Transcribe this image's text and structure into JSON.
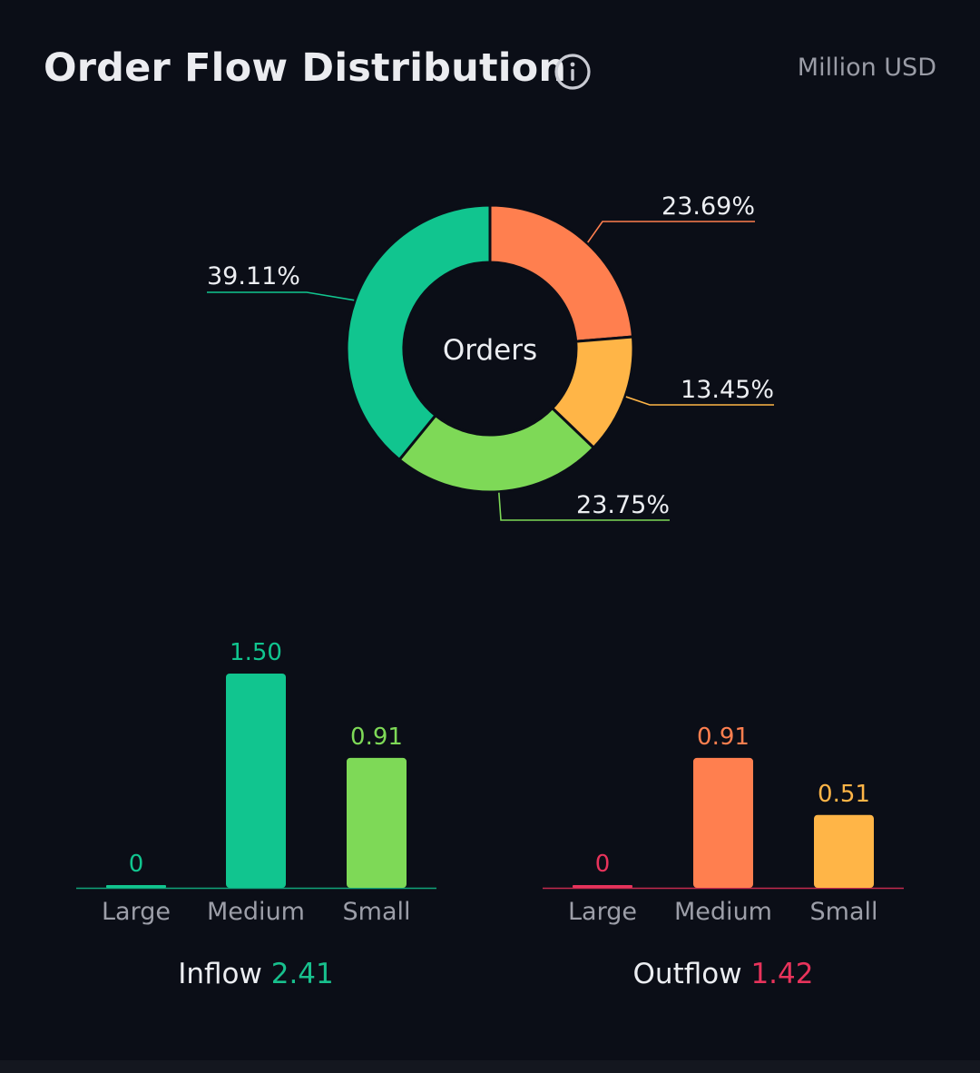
{
  "header": {
    "title": "Order Flow Distribution",
    "unit": "Million USD",
    "info_icon": "info-circle-icon"
  },
  "chart_data": [
    {
      "type": "pie",
      "center_label": "Orders",
      "slices": [
        {
          "label": "23.69%",
          "value": 23.69,
          "color": "#ff7f4f"
        },
        {
          "label": "13.45%",
          "value": 13.45,
          "color": "#ffb547"
        },
        {
          "label": "23.75%",
          "value": 23.75,
          "color": "#7ed957"
        },
        {
          "label": "39.11%",
          "value": 39.11,
          "color": "#11c58f"
        }
      ]
    },
    {
      "type": "bar",
      "categories": [
        "Large",
        "Medium",
        "Small"
      ],
      "values": [
        0,
        1.5,
        0.91
      ],
      "value_labels": [
        "0",
        "1.50",
        "0.91"
      ],
      "colors": [
        "#11c58f",
        "#11c58f",
        "#7ed957"
      ],
      "axis_color": "#11a37a",
      "ylim": [
        0,
        1.5
      ],
      "summary_label": "Inflow",
      "summary_value": "2.41",
      "summary_color": "#18c08d"
    },
    {
      "type": "bar",
      "categories": [
        "Large",
        "Medium",
        "Small"
      ],
      "values": [
        0,
        0.91,
        0.51
      ],
      "value_labels": [
        "0",
        "0.91",
        "0.51"
      ],
      "colors": [
        "#e8335b",
        "#ff7f4f",
        "#ffb547"
      ],
      "axis_color": "#c42a4f",
      "ylim": [
        0,
        1.5
      ],
      "summary_label": "Outflow",
      "summary_value": "1.42",
      "summary_color": "#e8335b"
    }
  ]
}
